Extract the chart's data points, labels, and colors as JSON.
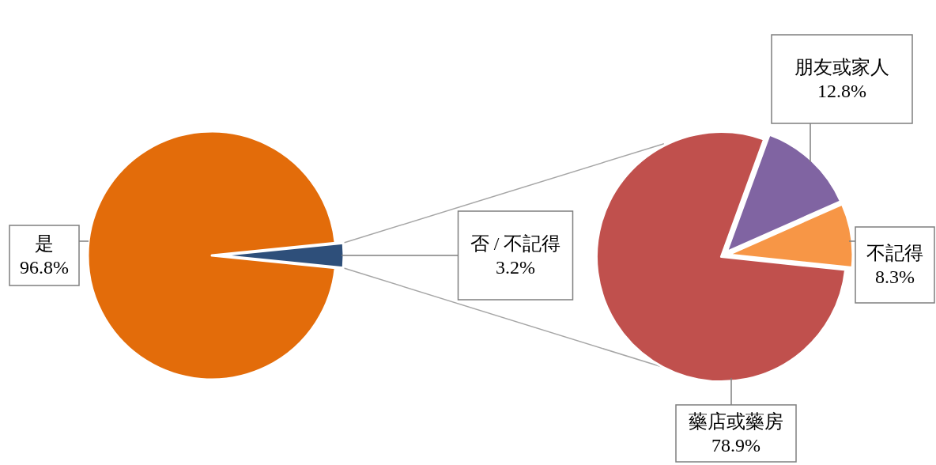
{
  "chart_data": [
    {
      "type": "pie",
      "categories": [
        "是",
        "否 / 不記得"
      ],
      "values": [
        96.8,
        3.2
      ],
      "colors": [
        "#e36c0a",
        "#2e4f7a"
      ],
      "value_labels": [
        "96.8%",
        "3.2%"
      ]
    },
    {
      "type": "pie",
      "categories": [
        "藥店或藥房",
        "朋友或家人",
        "不記得"
      ],
      "values": [
        78.9,
        12.8,
        8.3
      ],
      "colors": [
        "#c0504d",
        "#8064a2",
        "#f79646"
      ],
      "value_labels": [
        "78.9%",
        "12.8%",
        "8.3%"
      ]
    }
  ]
}
